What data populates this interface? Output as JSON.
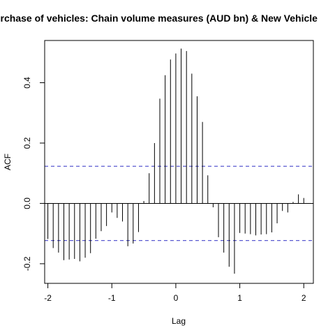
{
  "chart_data": {
    "type": "bar",
    "title": "urchase of vehicles: Chain volume measures (AUD bn) & New Vehicle",
    "xlabel": "Lag",
    "ylabel": "ACF",
    "xlim": [
      -2.05,
      2.15
    ],
    "ylim": [
      -0.265,
      0.54
    ],
    "x_ticks": [
      -2,
      -1,
      0,
      1,
      2
    ],
    "x_tick_labels": [
      "-2",
      "-1",
      "0",
      "1",
      "2"
    ],
    "y_ticks": [
      -0.2,
      0.0,
      0.2,
      0.4
    ],
    "y_tick_labels": [
      "-0.2",
      "0.0",
      "0.2",
      "0.4"
    ],
    "confidence_bounds": [
      0.123,
      -0.123
    ],
    "bound_color": "#5a5ad0",
    "zero_line": true,
    "grid": false,
    "lags": [
      -2.0,
      -1.9167,
      -1.8333,
      -1.75,
      -1.6667,
      -1.5833,
      -1.5,
      -1.4167,
      -1.3333,
      -1.25,
      -1.1667,
      -1.0833,
      -1.0,
      -0.9167,
      -0.8333,
      -0.75,
      -0.6667,
      -0.5833,
      -0.5,
      -0.4167,
      -0.3333,
      -0.25,
      -0.1667,
      -0.0833,
      0.0,
      0.0833,
      0.1667,
      0.25,
      0.3333,
      0.4167,
      0.5,
      0.5833,
      0.6667,
      0.75,
      0.8333,
      0.9167,
      1.0,
      1.0833,
      1.1667,
      1.25,
      1.3333,
      1.4167,
      1.5,
      1.5833,
      1.6667,
      1.75,
      1.8333,
      1.9167,
      2.0
    ],
    "values": [
      -0.118,
      -0.148,
      -0.163,
      -0.188,
      -0.186,
      -0.184,
      -0.192,
      -0.18,
      -0.165,
      -0.117,
      -0.092,
      -0.075,
      -0.03,
      -0.048,
      -0.06,
      -0.142,
      -0.133,
      -0.095,
      0.008,
      0.1,
      0.2,
      0.347,
      0.425,
      0.477,
      0.497,
      0.513,
      0.505,
      0.43,
      0.355,
      0.27,
      0.093,
      -0.013,
      -0.112,
      -0.163,
      -0.21,
      -0.233,
      -0.098,
      -0.1,
      -0.102,
      -0.106,
      -0.103,
      -0.102,
      -0.096,
      -0.066,
      -0.025,
      -0.03,
      0.005,
      0.03,
      0.018
    ]
  }
}
